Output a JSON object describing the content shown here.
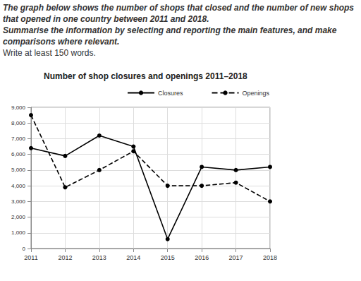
{
  "chart_data": {
    "type": "line",
    "title": "Number of shop closures and openings 2011–2018",
    "annotations": [
      "The graph below shows the number of shops that closed and the number of new shops that opened in one country between 2011 and 2018.",
      "Summarise the information by selecting and reporting the main features, and make comparisons where relevant.",
      "Write at least 150 words."
    ],
    "categories": [
      "2011",
      "2012",
      "2013",
      "2014",
      "2015",
      "2016",
      "2017",
      "2018"
    ],
    "series": [
      {
        "name": "Closures",
        "color": "#000000",
        "marker": "circle",
        "line_style": "solid",
        "values": [
          6400,
          5900,
          7200,
          6500,
          600,
          5200,
          5000,
          5200
        ]
      },
      {
        "name": "Openings",
        "color": "#000000",
        "marker": "circle",
        "line_style": "dashed",
        "values": [
          8500,
          3900,
          5000,
          6200,
          4000,
          4000,
          4200,
          3000
        ]
      }
    ],
    "ylim": [
      0,
      9000
    ],
    "yticks": [
      0,
      {
        "value": 1000,
        "label": "1,000"
      },
      {
        "value": 2000,
        "label": "2,000"
      },
      {
        "value": 3000,
        "label": "3,000"
      },
      {
        "value": 4000,
        "label": "4,000"
      },
      {
        "value": 5000,
        "label": "5,000"
      },
      {
        "value": 6000,
        "label": "6,000"
      },
      {
        "value": 7000,
        "label": "7,000"
      },
      {
        "value": 8000,
        "label": "8,000"
      },
      {
        "value": 9000,
        "label": "9,000"
      }
    ],
    "grid": true,
    "legend": "top"
  }
}
